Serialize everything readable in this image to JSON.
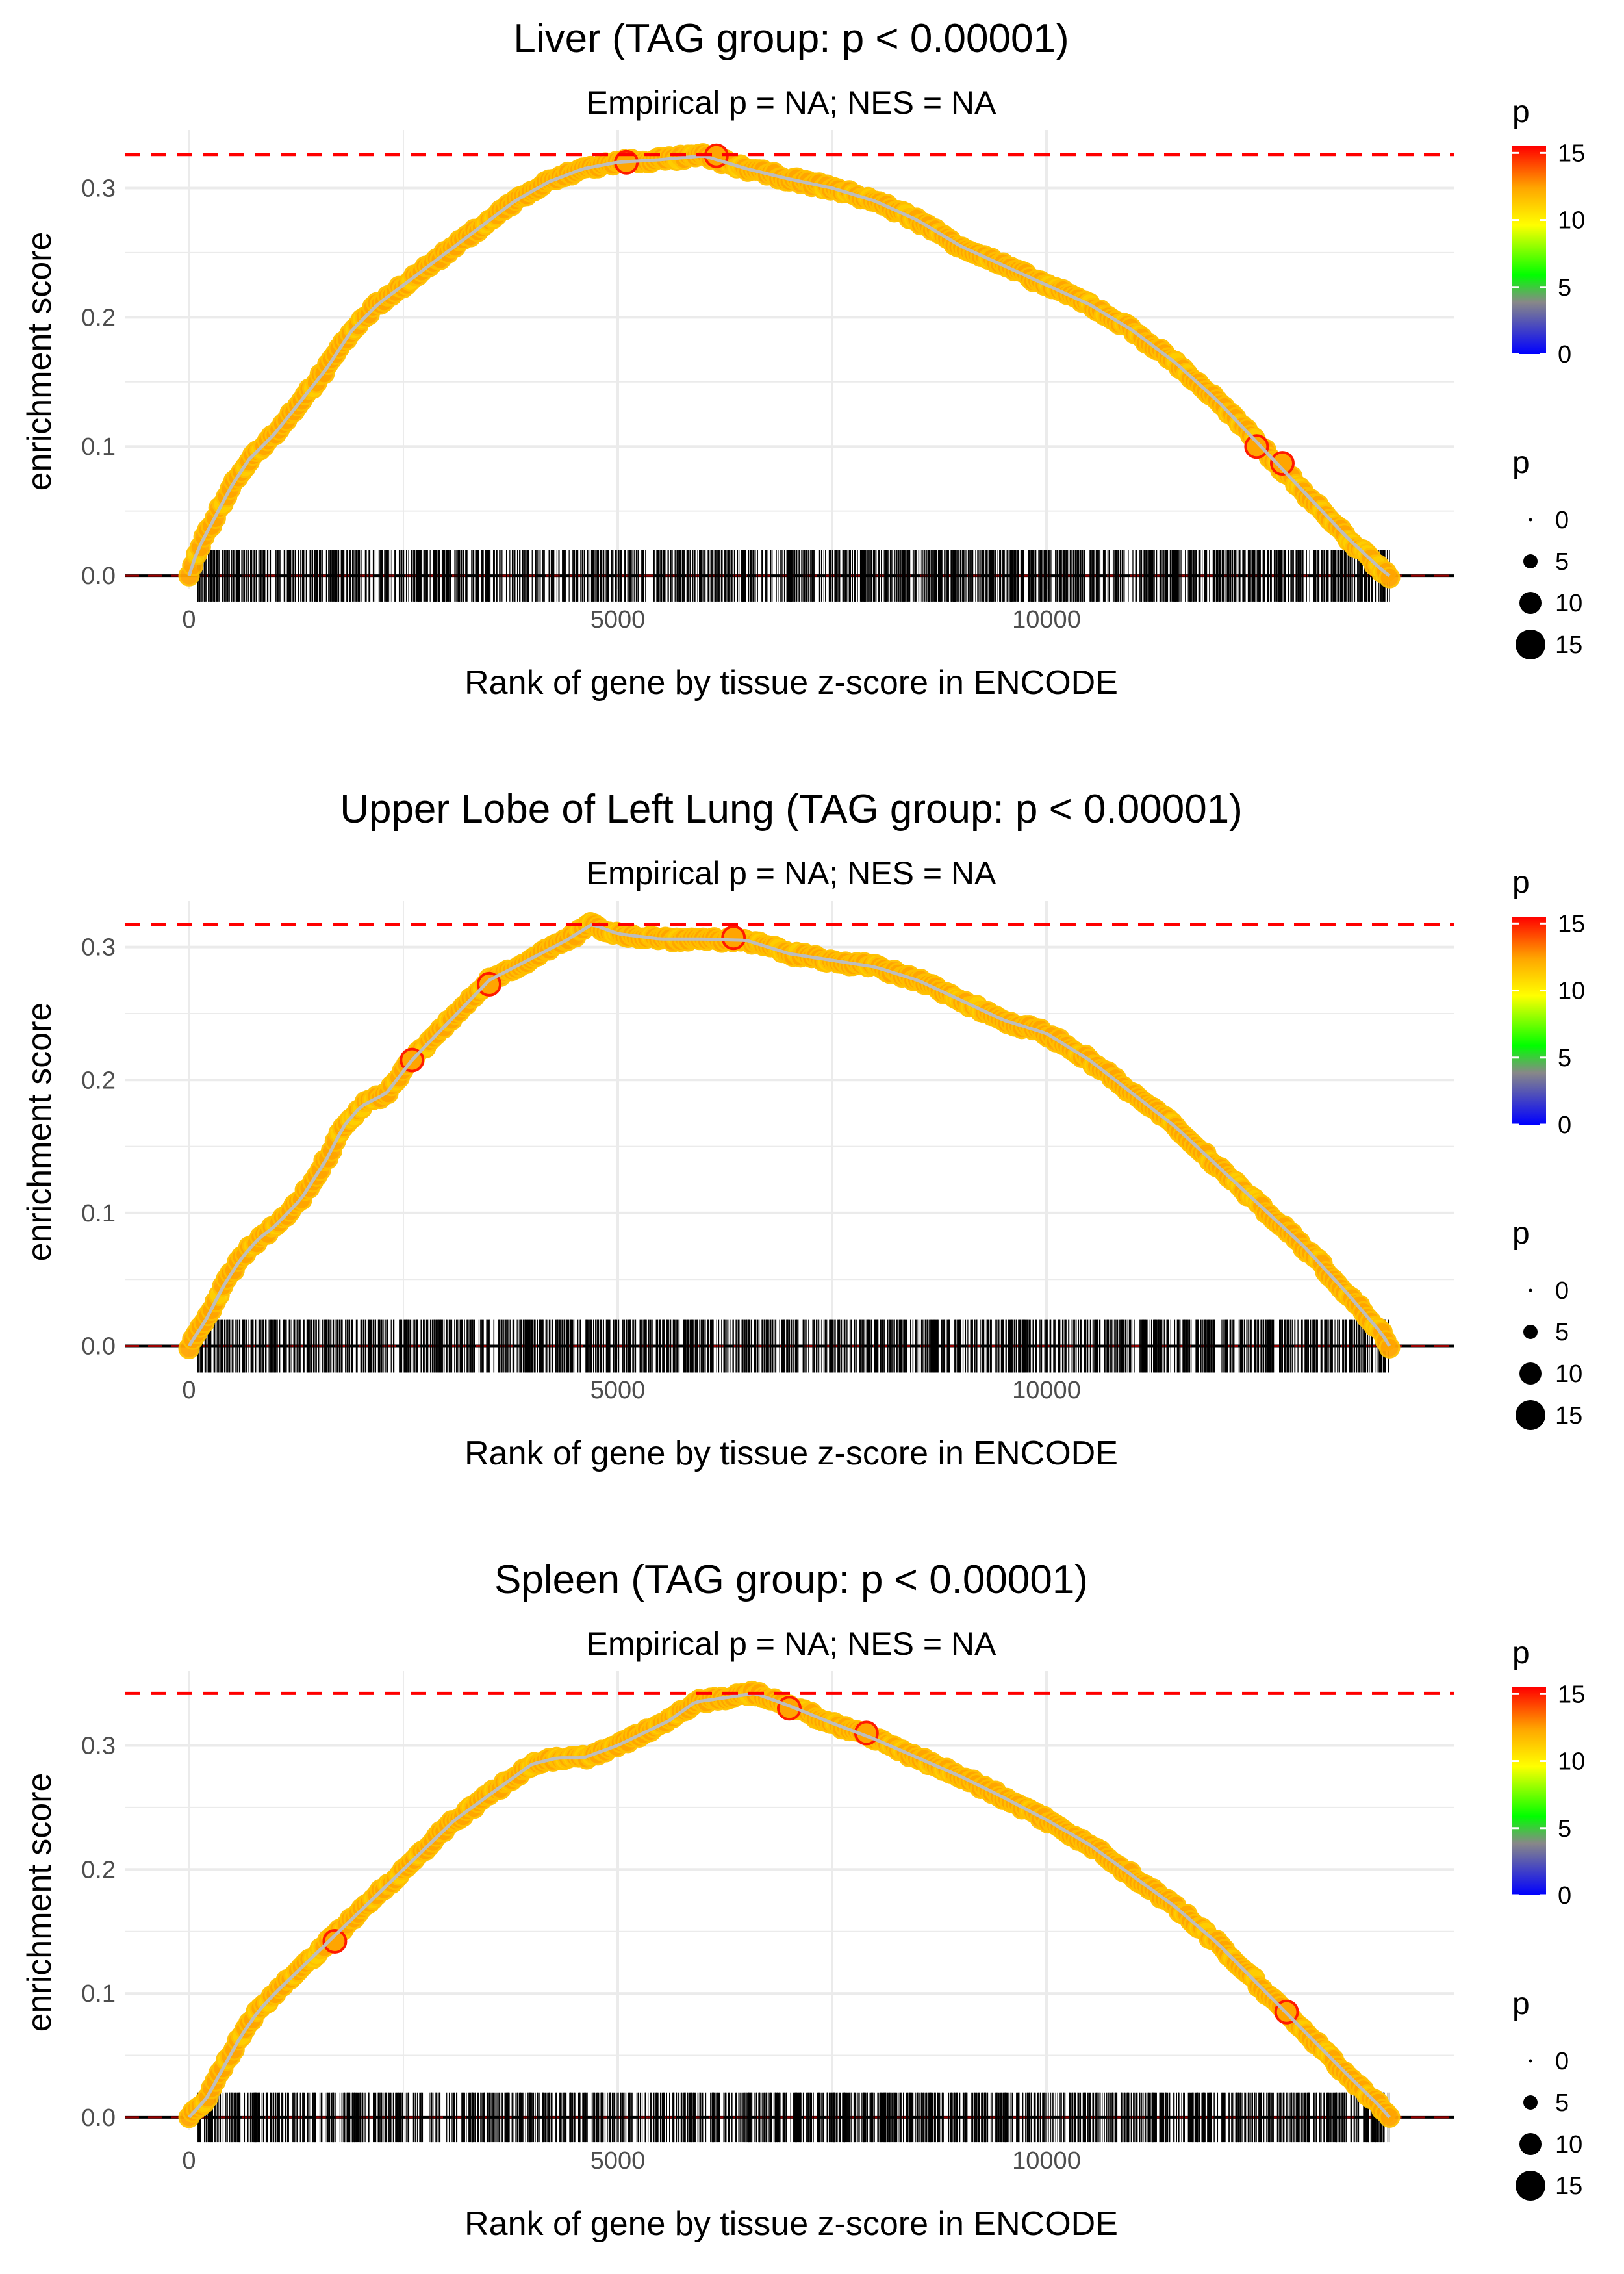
{
  "chart_data": [
    {
      "type": "scatter",
      "title": "Liver (TAG group: p < 0.00001)",
      "subtitle": "Empirical p = NA; NES = NA",
      "xlabel": "Rank of gene by tissue z-score in ENCODE",
      "ylabel": "enrichment score",
      "xlim": [
        -750,
        14750
      ],
      "ylim": [
        -0.01,
        0.345
      ],
      "xticks": [
        0,
        5000,
        10000
      ],
      "xtick_labels": [
        "0",
        "5000",
        "10000"
      ],
      "yticks": [
        0.0,
        0.1,
        0.2,
        0.3
      ],
      "ytick_labels": [
        "0.0",
        "0.1",
        "0.2",
        "0.3"
      ],
      "max_es_line": 0.326,
      "n_genes": 14000,
      "curve": {
        "x": [
          0,
          100,
          300,
          500,
          700,
          1000,
          1300,
          1600,
          1900,
          2200,
          2600,
          3000,
          3400,
          3800,
          4200,
          4600,
          5000,
          5500,
          6000,
          6500,
          7000,
          7500,
          8000,
          8500,
          9000,
          9500,
          10000,
          10500,
          11000,
          11500,
          12000,
          12500,
          13000,
          13500,
          13900,
          14000
        ],
        "y": [
          0.0,
          0.02,
          0.045,
          0.07,
          0.09,
          0.11,
          0.135,
          0.16,
          0.19,
          0.21,
          0.23,
          0.25,
          0.27,
          0.29,
          0.305,
          0.315,
          0.32,
          0.322,
          0.325,
          0.315,
          0.307,
          0.3,
          0.29,
          0.275,
          0.255,
          0.24,
          0.225,
          0.21,
          0.19,
          0.165,
          0.135,
          0.1,
          0.065,
          0.03,
          0.005,
          0.0
        ]
      },
      "highlights": [
        [
          12450,
          0.1
        ],
        [
          12750,
          0.087
        ],
        [
          6150,
          0.325
        ],
        [
          5100,
          0.32
        ]
      ],
      "legend_color": {
        "title": "p",
        "ticks": [
          0,
          5,
          10,
          15
        ],
        "labels": [
          "0",
          "5",
          "10",
          "15"
        ]
      },
      "legend_size": {
        "title": "p",
        "values": [
          0,
          5,
          10,
          15
        ],
        "labels": [
          "0",
          "5",
          "10",
          "15"
        ]
      }
    },
    {
      "type": "scatter",
      "title": "Upper Lobe of Left Lung (TAG group: p < 0.00001)",
      "subtitle": "Empirical p = NA; NES = NA",
      "xlabel": "Rank of gene by tissue z-score in ENCODE",
      "ylabel": "enrichment score",
      "xlim": [
        -750,
        14750
      ],
      "ylim": [
        -0.01,
        0.335
      ],
      "xticks": [
        0,
        5000,
        10000
      ],
      "xtick_labels": [
        "0",
        "5000",
        "10000"
      ],
      "yticks": [
        0.0,
        0.1,
        0.2,
        0.3
      ],
      "ytick_labels": [
        "0.0",
        "0.1",
        "0.2",
        "0.3"
      ],
      "max_es_line": 0.317,
      "n_genes": 14000,
      "curve": {
        "x": [
          0,
          200,
          400,
          600,
          800,
          1000,
          1300,
          1600,
          1800,
          2000,
          2300,
          2600,
          2900,
          3200,
          3500,
          3800,
          4100,
          4400,
          4700,
          5000,
          5500,
          6000,
          6500,
          7000,
          7500,
          8000,
          8500,
          9000,
          9500,
          10000,
          10500,
          11000,
          11500,
          12000,
          12500,
          13000,
          13500,
          13900,
          14000
        ],
        "y": [
          0.0,
          0.02,
          0.045,
          0.065,
          0.08,
          0.09,
          0.11,
          0.14,
          0.165,
          0.18,
          0.19,
          0.215,
          0.235,
          0.255,
          0.275,
          0.285,
          0.295,
          0.305,
          0.317,
          0.31,
          0.306,
          0.306,
          0.305,
          0.295,
          0.29,
          0.285,
          0.275,
          0.26,
          0.245,
          0.235,
          0.215,
          0.19,
          0.165,
          0.135,
          0.105,
          0.075,
          0.04,
          0.01,
          0.0
        ]
      },
      "highlights": [
        [
          3500,
          0.272
        ],
        [
          2600,
          0.215
        ],
        [
          6350,
          0.307
        ]
      ],
      "legend_color": {
        "title": "p",
        "ticks": [
          0,
          5,
          10,
          15
        ],
        "labels": [
          "0",
          "5",
          "10",
          "15"
        ]
      },
      "legend_size": {
        "title": "p",
        "values": [
          0,
          5,
          10,
          15
        ],
        "labels": [
          "0",
          "5",
          "10",
          "15"
        ]
      }
    },
    {
      "type": "scatter",
      "title": "Spleen (TAG group: p < 0.00001)",
      "subtitle": "Empirical p = NA; NES = NA",
      "xlabel": "Rank of gene by tissue z-score in ENCODE",
      "ylabel": "enrichment score",
      "xlim": [
        -750,
        14750
      ],
      "ylim": [
        -0.01,
        0.36
      ],
      "xticks": [
        0,
        5000,
        10000
      ],
      "xtick_labels": [
        "0",
        "5000",
        "10000"
      ],
      "yticks": [
        0.0,
        0.1,
        0.2,
        0.3
      ],
      "ytick_labels": [
        "0.0",
        "0.1",
        "0.2",
        "0.3"
      ],
      "max_es_line": 0.342,
      "n_genes": 14000,
      "curve": {
        "x": [
          0,
          200,
          400,
          600,
          800,
          1000,
          1300,
          1600,
          1900,
          2200,
          2500,
          2800,
          3100,
          3400,
          3700,
          4000,
          4300,
          4600,
          5000,
          5300,
          5600,
          5900,
          6200,
          6600,
          7000,
          7500,
          8000,
          8500,
          9000,
          9500,
          10000,
          10500,
          11000,
          11500,
          12000,
          12500,
          13000,
          13500,
          13900,
          14000
        ],
        "y": [
          0.0,
          0.015,
          0.04,
          0.065,
          0.085,
          0.1,
          0.12,
          0.14,
          0.16,
          0.18,
          0.2,
          0.22,
          0.24,
          0.255,
          0.27,
          0.285,
          0.29,
          0.29,
          0.3,
          0.31,
          0.32,
          0.335,
          0.338,
          0.342,
          0.332,
          0.318,
          0.305,
          0.29,
          0.275,
          0.258,
          0.24,
          0.22,
          0.195,
          0.17,
          0.14,
          0.105,
          0.07,
          0.035,
          0.008,
          0.0
        ]
      },
      "highlights": [
        [
          1700,
          0.142
        ],
        [
          7000,
          0.33
        ],
        [
          7900,
          0.31
        ],
        [
          12800,
          0.085
        ]
      ],
      "legend_color": {
        "title": "p",
        "ticks": [
          0,
          5,
          10,
          15
        ],
        "labels": [
          "0",
          "5",
          "10",
          "15"
        ]
      },
      "legend_size": {
        "title": "p",
        "values": [
          0,
          5,
          10,
          15
        ],
        "labels": [
          "0",
          "5",
          "10",
          "15"
        ]
      }
    }
  ],
  "colors": {
    "max_line": "#ff0000",
    "curve_line": "#bdbdbd",
    "point_fill": "#ffa500",
    "point_stroke": "#ffc000",
    "highlight_stroke": "#ff1a00",
    "rug": "#000000",
    "grid": "#ebebeb",
    "gradient": [
      "#0000ff",
      "#00ff00",
      "#ffff00",
      "#ffa500",
      "#ff0000"
    ]
  }
}
